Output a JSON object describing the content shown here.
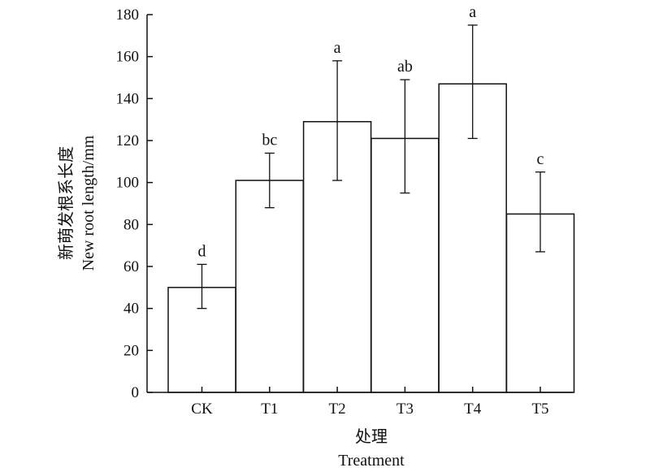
{
  "chart_data": {
    "type": "bar",
    "categories": [
      "CK",
      "T1",
      "T2",
      "T3",
      "T4",
      "T5"
    ],
    "values": [
      50,
      101,
      129,
      121,
      147,
      85
    ],
    "error_low": [
      40,
      88,
      101,
      95,
      121,
      67
    ],
    "error_high": [
      61,
      114,
      158,
      149,
      175,
      105
    ],
    "significance_labels": [
      "d",
      "bc",
      "a",
      "ab",
      "a",
      "c"
    ],
    "title": "",
    "xlabel_cn": "处理",
    "xlabel": "Treatment",
    "ylabel_cn": "新萌发根系长度",
    "ylabel": "New root length/mm",
    "ylim": [
      0,
      180
    ],
    "yticks": [
      0,
      20,
      40,
      60,
      80,
      100,
      120,
      140,
      160,
      180
    ],
    "grid": false,
    "colors": {
      "bar_fill": "#ffffff",
      "stroke": "#111111"
    }
  }
}
